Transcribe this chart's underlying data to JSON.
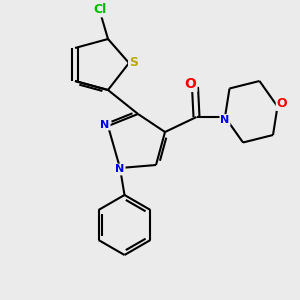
{
  "background_color": "#ebebeb",
  "bond_color": "#000000",
  "atom_colors": {
    "Cl": "#00bb00",
    "S": "#bbaa00",
    "O": "#ff0000",
    "N": "#0000ee",
    "C": "#000000"
  },
  "figsize": [
    3.0,
    3.0
  ],
  "dpi": 100,
  "xlim": [
    0,
    10
  ],
  "ylim": [
    0,
    10
  ]
}
